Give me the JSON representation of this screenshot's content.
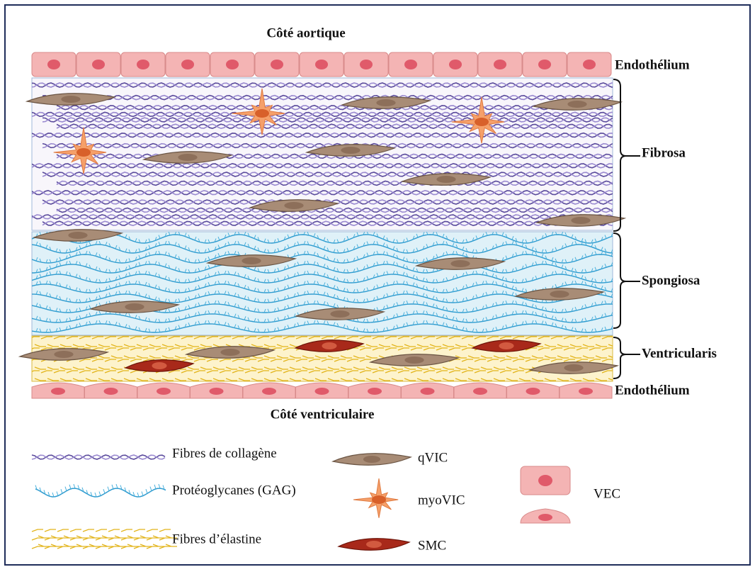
{
  "top_side": "Côté aortique",
  "bottom_side": "Côté ventriculaire",
  "layers": [
    "Endothélium",
    "Fibrosa",
    "Spongiosa",
    "Ventricularis",
    "Endothélium"
  ],
  "legend": [
    "Fibres de collagène",
    "Protéoglycanes (GAG)",
    "Fibres d’élastine",
    "qVIC",
    "myoVIC",
    "SMC",
    "VEC"
  ]
}
